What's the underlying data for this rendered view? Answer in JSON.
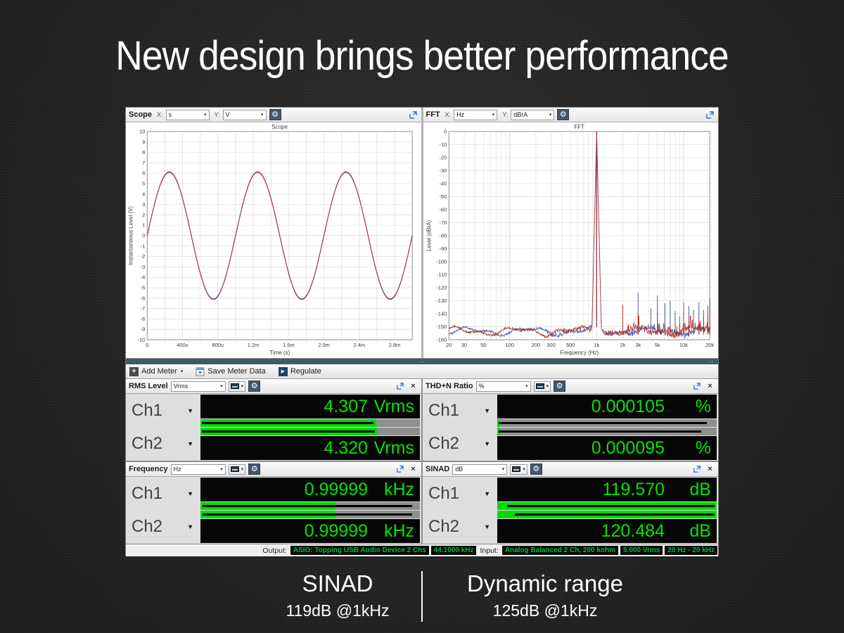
{
  "slide": {
    "title": "New design brings better performance",
    "stats": [
      {
        "name": "SINAD",
        "value": "119dB @1kHz"
      },
      {
        "name": "Dynamic range",
        "value": "125dB @1kHz"
      }
    ]
  },
  "icons": {
    "gear": "⚙",
    "dropdown_arrow": "▾",
    "channel_arrow": "▼",
    "close": "×",
    "add": "+",
    "play": "▶",
    "grip": "⋯"
  },
  "app": {
    "scope_panel": {
      "title": "Scope",
      "x_label": "X:",
      "x_unit": "s",
      "y_label": "Y:",
      "y_unit": "V"
    },
    "fft_panel": {
      "title": "FFT",
      "x_label": "X:",
      "x_unit": "Hz",
      "y_label": "Y:",
      "y_unit": "dBrA"
    },
    "toolbar": {
      "add_meter": "Add Meter",
      "save_meter_data": "Save Meter Data",
      "regulate": "Regulate"
    },
    "meters": {
      "rms": {
        "title": "RMS Level",
        "unit_selector": "Vrms",
        "ch1": {
          "label": "Ch1",
          "value": "4.307",
          "unit": "Vrms",
          "bar": {
            "fill": 0.8,
            "line": [
              0.005,
              0.79
            ]
          }
        },
        "ch2": {
          "label": "Ch2",
          "value": "4.320",
          "unit": "Vrms",
          "bar": {
            "fill": 0.805,
            "line": [
              0.005,
              0.795
            ]
          }
        }
      },
      "thdn": {
        "title": "THD+N Ratio",
        "unit_selector": "%",
        "ch1": {
          "label": "Ch1",
          "value": "0.000105",
          "unit": "%",
          "bar": {
            "fill": 0.013,
            "line": [
              0.005,
              0.955
            ]
          }
        },
        "ch2": {
          "label": "Ch2",
          "value": "0.000095",
          "unit": "%",
          "bar": {
            "fill": 0.013,
            "line": [
              0.005,
              0.93
            ]
          }
        }
      },
      "freq": {
        "title": "Frequency",
        "unit_selector": "Hz",
        "ch1": {
          "label": "Ch1",
          "value": "0.99999",
          "unit": "kHz",
          "bar": {
            "fill": 0.615,
            "line": [
              0.01,
              0.965
            ]
          }
        },
        "ch2": {
          "label": "Ch2",
          "value": "0.99999",
          "unit": "kHz",
          "bar": {
            "fill": 0.615,
            "line": [
              0.01,
              0.965
            ]
          }
        }
      },
      "sinad": {
        "title": "SINAD",
        "unit_selector": "dB",
        "ch1": {
          "label": "Ch1",
          "value": "119.570",
          "unit": "dB",
          "bar": {
            "fill": 1.0,
            "line": [
              0.045,
              0.99
            ]
          }
        },
        "ch2": {
          "label": "Ch2",
          "value": "120.484",
          "unit": "dB",
          "bar": {
            "fill": 1.0,
            "line": [
              0.08,
              0.99
            ]
          }
        }
      }
    },
    "status_bar": {
      "output_label": "Output:",
      "output_items": [
        "ASIO: Topping USB Audio Device 2 Chs",
        "44.1000 kHz"
      ],
      "input_label": "Input:",
      "input_items": [
        "Analog Balanced 2 Ch, 200 kohm",
        "5.000 Vrms",
        "20 Hz - 20 kHz"
      ]
    }
  },
  "chart_data": [
    {
      "id": "scope",
      "type": "line",
      "title": "Scope",
      "xlabel": "Time (s)",
      "ylabel": "Instantaneous Level (V)",
      "xlim_s": [
        0,
        0.003
      ],
      "ylim_v": [
        -10,
        10
      ],
      "y_tick_step": 1,
      "x_grid_step_s": 0.0002,
      "x_ticks": [
        {
          "t": 0,
          "label": "0"
        },
        {
          "t": 0.0004,
          "label": "400u"
        },
        {
          "t": 0.0008,
          "label": "800u"
        },
        {
          "t": 0.0012,
          "label": "1.2m"
        },
        {
          "t": 0.0016,
          "label": "1.6m"
        },
        {
          "t": 0.002,
          "label": "2.0m"
        },
        {
          "t": 0.0024,
          "label": "2.4m"
        },
        {
          "t": 0.0028,
          "label": "2.8m"
        }
      ],
      "series": [
        {
          "name": "Ch1",
          "color": "#4a5f9d"
        },
        {
          "name": "Ch2",
          "color": "#a43d55"
        }
      ],
      "signal": {
        "shape": "sine",
        "amplitude_v": 6.1,
        "frequency_hz": 1000,
        "phase_deg": 0
      }
    },
    {
      "id": "fft",
      "type": "line",
      "title": "FFT",
      "xlabel": "Frequency (Hz)",
      "ylabel": "Level (dBrA)",
      "x_scale": "log",
      "xlim_hz": [
        20,
        20000
      ],
      "ylim_db": [
        -160,
        0
      ],
      "y_tick_step": 10,
      "x_ticks": [
        {
          "f": 20,
          "label": "20"
        },
        {
          "f": 30,
          "label": "30"
        },
        {
          "f": 50,
          "label": "50"
        },
        {
          "f": 100,
          "label": "100"
        },
        {
          "f": 200,
          "label": "200"
        },
        {
          "f": 300,
          "label": "300"
        },
        {
          "f": 500,
          "label": "500"
        },
        {
          "f": 1000,
          "label": "1k"
        },
        {
          "f": 2000,
          "label": "2k"
        },
        {
          "f": 3000,
          "label": "3k"
        },
        {
          "f": 5000,
          "label": "5k"
        },
        {
          "f": 10000,
          "label": "10k"
        },
        {
          "f": 20000,
          "label": "20k"
        }
      ],
      "series": [
        {
          "name": "Ch1",
          "color": "#4a5f9d"
        },
        {
          "name": "Ch2",
          "color": "#b23232"
        }
      ],
      "fundamental": {
        "freq_hz": 1000,
        "level_dbra": 0
      },
      "noise_floor_dbra": -154,
      "spurs": [
        {
          "f": 2000,
          "ch1": -155,
          "ch2": -133
        },
        {
          "f": 3000,
          "ch1": -124,
          "ch2": -140
        },
        {
          "f": 4200,
          "ch1": -136,
          "ch2": -150
        },
        {
          "f": 5000,
          "ch1": -126,
          "ch2": -139
        },
        {
          "f": 6100,
          "ch1": -132,
          "ch2": -148
        },
        {
          "f": 7000,
          "ch1": -130,
          "ch2": -149
        },
        {
          "f": 8000,
          "ch1": -138,
          "ch2": -147
        },
        {
          "f": 9000,
          "ch1": -142,
          "ch2": -148
        },
        {
          "f": 10000,
          "ch1": -131,
          "ch2": -137
        },
        {
          "f": 11500,
          "ch1": -134,
          "ch2": -146
        },
        {
          "f": 13000,
          "ch1": -137,
          "ch2": -144
        },
        {
          "f": 15000,
          "ch1": -131,
          "ch2": -145
        },
        {
          "f": 17000,
          "ch1": -137,
          "ch2": -142
        },
        {
          "f": 19000,
          "ch1": -134,
          "ch2": -141
        },
        {
          "f": 20000,
          "ch1": -128,
          "ch2": -134
        }
      ]
    }
  ]
}
